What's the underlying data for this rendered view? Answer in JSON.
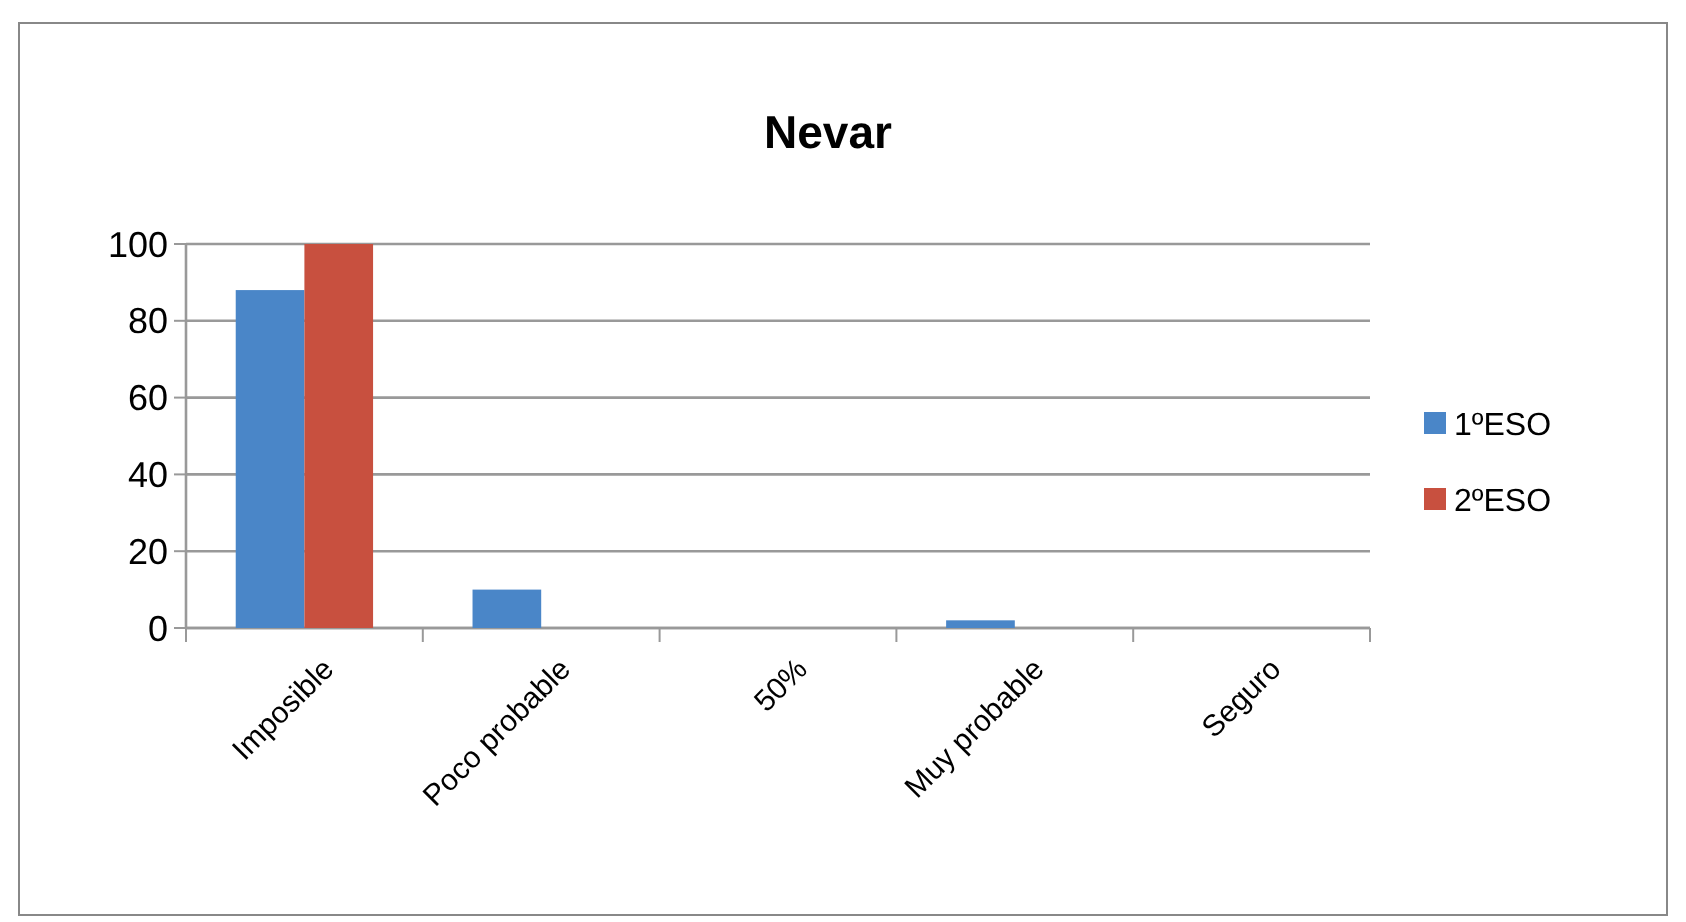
{
  "chart_data": {
    "type": "bar",
    "title": "Nevar",
    "categories": [
      "Imposible",
      "Poco probable",
      "50%",
      "Muy probable",
      "Seguro"
    ],
    "series": [
      {
        "name": "1ºESO",
        "color": "#4a86c8",
        "values": [
          88,
          10,
          0,
          2,
          0
        ]
      },
      {
        "name": "2ºESO",
        "color": "#c8503f",
        "values": [
          100,
          0,
          0,
          0,
          0
        ]
      }
    ],
    "ylim": [
      0,
      100
    ],
    "yticks": [
      0,
      20,
      40,
      60,
      80,
      100
    ],
    "grid": "y",
    "legend": "right"
  }
}
